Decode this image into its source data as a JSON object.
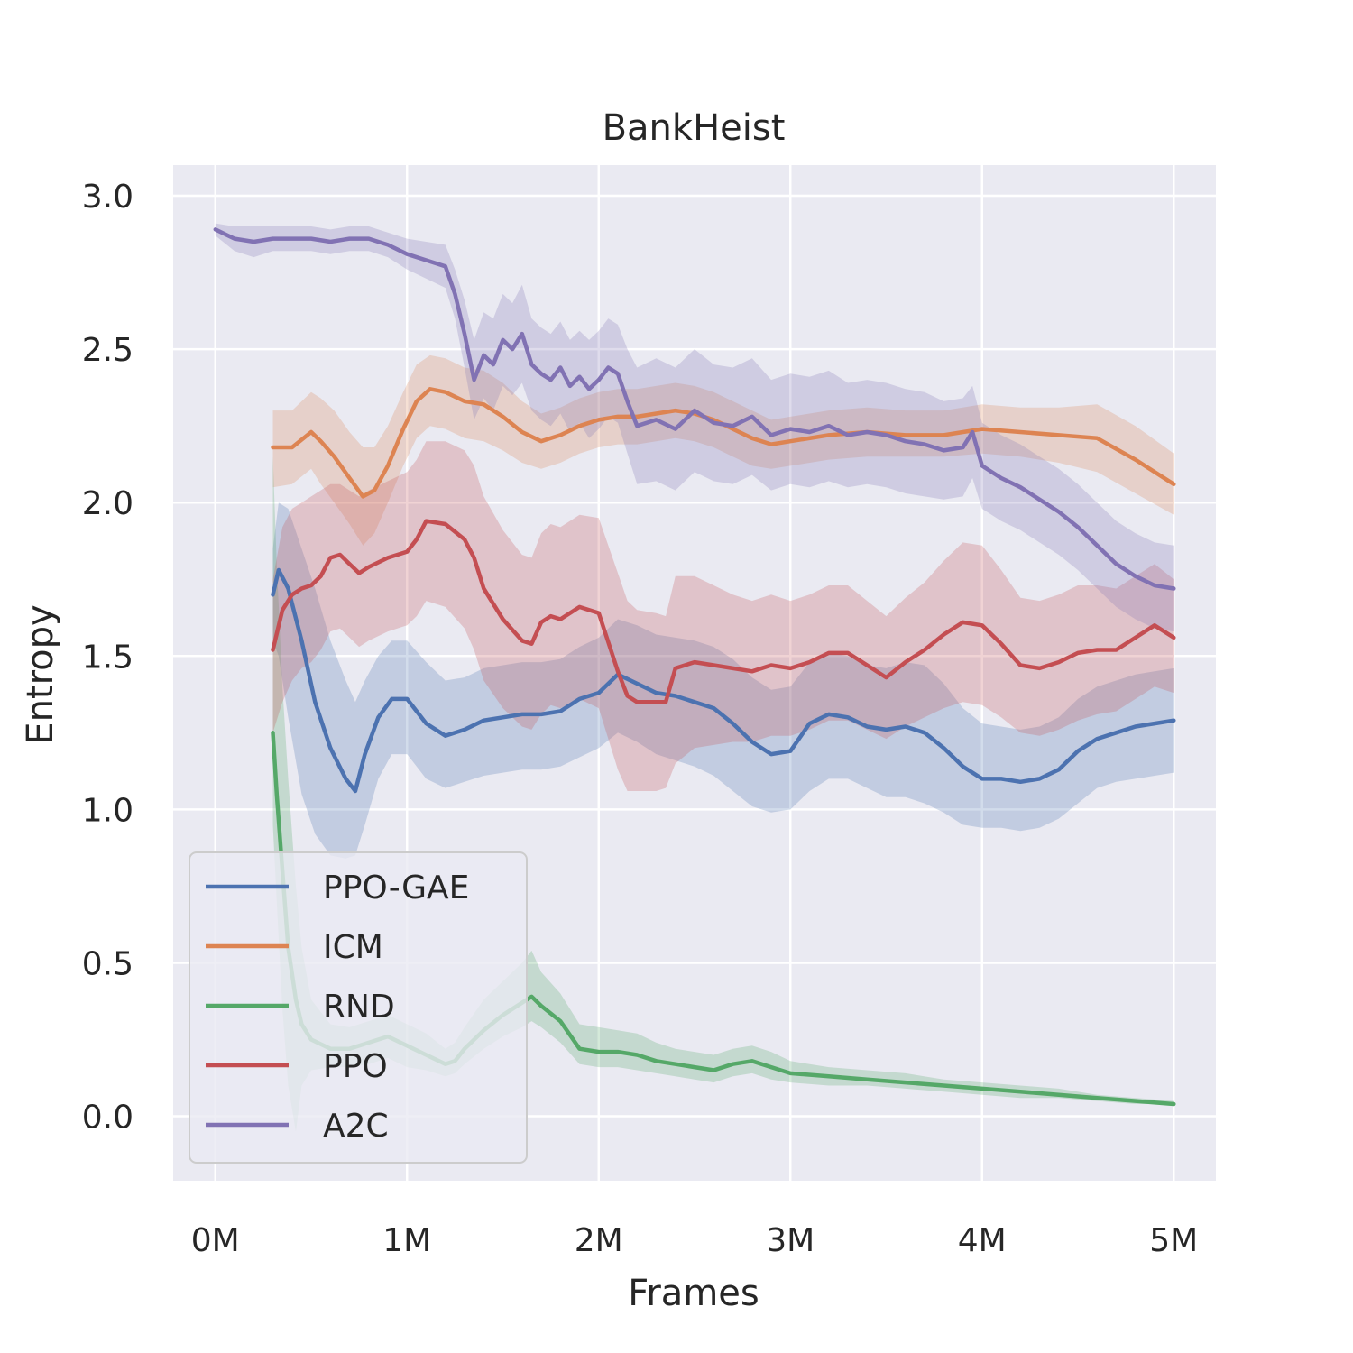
{
  "chart_data": {
    "type": "line",
    "title": "BankHeist",
    "xlabel": "Frames",
    "ylabel": "Entropy",
    "xlim": [
      -0.22,
      5.22
    ],
    "ylim": [
      -0.21,
      3.1
    ],
    "xticks": [
      {
        "value": 0,
        "label": "0M"
      },
      {
        "value": 1,
        "label": "1M"
      },
      {
        "value": 2,
        "label": "2M"
      },
      {
        "value": 3,
        "label": "3M"
      },
      {
        "value": 4,
        "label": "4M"
      },
      {
        "value": 5,
        "label": "5M"
      }
    ],
    "yticks": [
      {
        "value": 0.0,
        "label": "0.0"
      },
      {
        "value": 0.5,
        "label": "0.5"
      },
      {
        "value": 1.0,
        "label": "1.0"
      },
      {
        "value": 1.5,
        "label": "1.5"
      },
      {
        "value": 2.0,
        "label": "2.0"
      },
      {
        "value": 2.5,
        "label": "2.5"
      },
      {
        "value": 3.0,
        "label": "3.0"
      }
    ],
    "grid": true,
    "legend_position": "lower-left",
    "background": "#eaeaf2",
    "series": [
      {
        "name": "PPO-GAE",
        "color": "#4c72b0",
        "x": [
          0.3,
          0.33,
          0.38,
          0.45,
          0.52,
          0.6,
          0.68,
          0.73,
          0.78,
          0.85,
          0.92,
          1.0,
          1.1,
          1.2,
          1.3,
          1.4,
          1.5,
          1.6,
          1.7,
          1.8,
          1.9,
          2.0,
          2.1,
          2.2,
          2.3,
          2.4,
          2.5,
          2.6,
          2.7,
          2.8,
          2.9,
          3.0,
          3.1,
          3.2,
          3.3,
          3.4,
          3.5,
          3.6,
          3.7,
          3.8,
          3.9,
          4.0,
          4.1,
          4.2,
          4.3,
          4.4,
          4.5,
          4.6,
          4.7,
          4.8,
          4.9,
          5.0
        ],
        "y": [
          1.7,
          1.78,
          1.72,
          1.55,
          1.35,
          1.2,
          1.1,
          1.06,
          1.18,
          1.3,
          1.36,
          1.36,
          1.28,
          1.24,
          1.26,
          1.29,
          1.3,
          1.31,
          1.31,
          1.32,
          1.36,
          1.38,
          1.44,
          1.41,
          1.38,
          1.37,
          1.35,
          1.33,
          1.28,
          1.22,
          1.18,
          1.19,
          1.28,
          1.31,
          1.3,
          1.27,
          1.26,
          1.27,
          1.25,
          1.2,
          1.14,
          1.1,
          1.1,
          1.09,
          1.1,
          1.13,
          1.19,
          1.23,
          1.25,
          1.27,
          1.28,
          1.29
        ],
        "lower": [
          1.55,
          1.5,
          1.3,
          1.05,
          0.92,
          0.85,
          0.84,
          0.85,
          0.95,
          1.1,
          1.18,
          1.18,
          1.1,
          1.07,
          1.09,
          1.11,
          1.12,
          1.13,
          1.13,
          1.14,
          1.17,
          1.2,
          1.25,
          1.22,
          1.18,
          1.16,
          1.14,
          1.11,
          1.06,
          1.01,
          0.99,
          1.0,
          1.06,
          1.1,
          1.1,
          1.07,
          1.04,
          1.04,
          1.02,
          0.99,
          0.95,
          0.94,
          0.94,
          0.93,
          0.94,
          0.97,
          1.02,
          1.07,
          1.09,
          1.1,
          1.11,
          1.12
        ],
        "upper": [
          1.85,
          2.0,
          1.98,
          1.85,
          1.72,
          1.55,
          1.42,
          1.35,
          1.42,
          1.5,
          1.55,
          1.55,
          1.48,
          1.42,
          1.43,
          1.46,
          1.47,
          1.48,
          1.48,
          1.49,
          1.53,
          1.56,
          1.62,
          1.6,
          1.57,
          1.56,
          1.55,
          1.53,
          1.49,
          1.43,
          1.39,
          1.4,
          1.48,
          1.51,
          1.5,
          1.47,
          1.46,
          1.48,
          1.47,
          1.41,
          1.33,
          1.28,
          1.27,
          1.26,
          1.27,
          1.3,
          1.36,
          1.4,
          1.42,
          1.44,
          1.45,
          1.46
        ]
      },
      {
        "name": "ICM",
        "color": "#dd8452",
        "x": [
          0.3,
          0.4,
          0.5,
          0.55,
          0.62,
          0.7,
          0.77,
          0.83,
          0.9,
          0.98,
          1.05,
          1.12,
          1.2,
          1.3,
          1.4,
          1.5,
          1.6,
          1.7,
          1.8,
          1.9,
          2.0,
          2.1,
          2.2,
          2.3,
          2.4,
          2.5,
          2.6,
          2.7,
          2.8,
          2.9,
          3.0,
          3.2,
          3.4,
          3.6,
          3.8,
          4.0,
          4.2,
          4.4,
          4.6,
          4.8,
          5.0
        ],
        "y": [
          2.18,
          2.18,
          2.23,
          2.2,
          2.15,
          2.08,
          2.02,
          2.04,
          2.12,
          2.24,
          2.33,
          2.37,
          2.36,
          2.33,
          2.32,
          2.28,
          2.23,
          2.2,
          2.22,
          2.25,
          2.27,
          2.28,
          2.28,
          2.29,
          2.3,
          2.29,
          2.27,
          2.24,
          2.21,
          2.19,
          2.2,
          2.22,
          2.23,
          2.22,
          2.22,
          2.24,
          2.23,
          2.22,
          2.21,
          2.14,
          2.06
        ],
        "lower": [
          2.05,
          2.06,
          2.11,
          2.06,
          2.0,
          1.93,
          1.86,
          1.9,
          2.0,
          2.12,
          2.21,
          2.25,
          2.24,
          2.21,
          2.2,
          2.17,
          2.13,
          2.11,
          2.13,
          2.16,
          2.18,
          2.19,
          2.19,
          2.2,
          2.21,
          2.2,
          2.18,
          2.15,
          2.12,
          2.11,
          2.12,
          2.14,
          2.15,
          2.15,
          2.15,
          2.16,
          2.15,
          2.13,
          2.1,
          2.03,
          1.96
        ],
        "upper": [
          2.3,
          2.3,
          2.36,
          2.34,
          2.3,
          2.23,
          2.18,
          2.18,
          2.25,
          2.36,
          2.45,
          2.48,
          2.47,
          2.44,
          2.43,
          2.39,
          2.33,
          2.29,
          2.31,
          2.34,
          2.36,
          2.37,
          2.37,
          2.38,
          2.39,
          2.38,
          2.36,
          2.33,
          2.3,
          2.27,
          2.28,
          2.3,
          2.31,
          2.3,
          2.3,
          2.32,
          2.31,
          2.31,
          2.32,
          2.25,
          2.16
        ]
      },
      {
        "name": "RND",
        "color": "#55a868",
        "x": [
          0.3,
          0.32,
          0.35,
          0.38,
          0.42,
          0.45,
          0.5,
          0.6,
          0.7,
          0.8,
          0.9,
          1.0,
          1.1,
          1.2,
          1.25,
          1.3,
          1.4,
          1.5,
          1.6,
          1.65,
          1.7,
          1.8,
          1.9,
          2.0,
          2.1,
          2.2,
          2.3,
          2.4,
          2.5,
          2.6,
          2.7,
          2.8,
          2.9,
          3.0,
          3.2,
          3.4,
          3.6,
          3.8,
          4.0,
          4.2,
          4.4,
          4.6,
          4.8,
          5.0
        ],
        "y": [
          1.25,
          1.05,
          0.8,
          0.55,
          0.38,
          0.3,
          0.25,
          0.22,
          0.22,
          0.24,
          0.26,
          0.23,
          0.2,
          0.17,
          0.18,
          0.22,
          0.28,
          0.33,
          0.37,
          0.39,
          0.36,
          0.31,
          0.22,
          0.21,
          0.21,
          0.2,
          0.18,
          0.17,
          0.16,
          0.15,
          0.17,
          0.18,
          0.16,
          0.14,
          0.13,
          0.12,
          0.11,
          0.1,
          0.09,
          0.08,
          0.07,
          0.06,
          0.05,
          0.04
        ],
        "lower": [
          0.95,
          0.7,
          0.35,
          0.1,
          -0.05,
          0.1,
          0.15,
          0.16,
          0.16,
          0.17,
          0.19,
          0.16,
          0.15,
          0.13,
          0.14,
          0.17,
          0.22,
          0.26,
          0.29,
          0.31,
          0.29,
          0.24,
          0.17,
          0.16,
          0.16,
          0.15,
          0.14,
          0.13,
          0.12,
          0.11,
          0.13,
          0.14,
          0.12,
          0.11,
          0.1,
          0.1,
          0.09,
          0.08,
          0.07,
          0.06,
          0.06,
          0.05,
          0.04,
          0.04
        ],
        "upper": [
          2.15,
          1.8,
          1.4,
          1.1,
          0.75,
          0.55,
          0.38,
          0.3,
          0.29,
          0.31,
          0.33,
          0.3,
          0.27,
          0.22,
          0.24,
          0.29,
          0.38,
          0.44,
          0.5,
          0.54,
          0.47,
          0.4,
          0.3,
          0.29,
          0.28,
          0.27,
          0.24,
          0.22,
          0.21,
          0.2,
          0.22,
          0.23,
          0.21,
          0.18,
          0.16,
          0.15,
          0.14,
          0.12,
          0.11,
          0.1,
          0.09,
          0.07,
          0.06,
          0.05
        ]
      },
      {
        "name": "PPO",
        "color": "#c44e52",
        "x": [
          0.3,
          0.35,
          0.4,
          0.45,
          0.5,
          0.55,
          0.6,
          0.65,
          0.7,
          0.75,
          0.8,
          0.9,
          1.0,
          1.05,
          1.1,
          1.2,
          1.3,
          1.35,
          1.4,
          1.5,
          1.6,
          1.65,
          1.7,
          1.75,
          1.8,
          1.9,
          2.0,
          2.1,
          2.15,
          2.2,
          2.3,
          2.35,
          2.4,
          2.5,
          2.6,
          2.7,
          2.8,
          2.9,
          3.0,
          3.1,
          3.2,
          3.3,
          3.4,
          3.5,
          3.6,
          3.7,
          3.8,
          3.9,
          4.0,
          4.1,
          4.2,
          4.3,
          4.4,
          4.5,
          4.6,
          4.7,
          4.8,
          4.9,
          5.0
        ],
        "y": [
          1.52,
          1.65,
          1.7,
          1.72,
          1.73,
          1.76,
          1.82,
          1.83,
          1.8,
          1.77,
          1.79,
          1.82,
          1.84,
          1.88,
          1.94,
          1.93,
          1.88,
          1.82,
          1.72,
          1.62,
          1.55,
          1.54,
          1.61,
          1.63,
          1.62,
          1.66,
          1.64,
          1.45,
          1.37,
          1.35,
          1.35,
          1.35,
          1.46,
          1.48,
          1.47,
          1.46,
          1.45,
          1.47,
          1.46,
          1.48,
          1.51,
          1.51,
          1.47,
          1.43,
          1.48,
          1.52,
          1.57,
          1.61,
          1.6,
          1.54,
          1.47,
          1.46,
          1.48,
          1.51,
          1.52,
          1.52,
          1.56,
          1.6,
          1.56
        ],
        "lower": [
          1.25,
          1.35,
          1.42,
          1.46,
          1.48,
          1.52,
          1.58,
          1.59,
          1.56,
          1.53,
          1.55,
          1.58,
          1.6,
          1.63,
          1.68,
          1.66,
          1.59,
          1.52,
          1.42,
          1.33,
          1.27,
          1.26,
          1.31,
          1.34,
          1.33,
          1.36,
          1.33,
          1.13,
          1.06,
          1.06,
          1.06,
          1.07,
          1.15,
          1.2,
          1.21,
          1.22,
          1.22,
          1.24,
          1.24,
          1.26,
          1.29,
          1.29,
          1.26,
          1.23,
          1.27,
          1.3,
          1.33,
          1.35,
          1.34,
          1.3,
          1.25,
          1.24,
          1.26,
          1.29,
          1.31,
          1.32,
          1.36,
          1.4,
          1.38
        ],
        "upper": [
          1.75,
          1.92,
          1.98,
          2.0,
          2.02,
          2.04,
          2.06,
          2.06,
          2.04,
          2.02,
          2.04,
          2.07,
          2.1,
          2.14,
          2.2,
          2.2,
          2.17,
          2.12,
          2.02,
          1.91,
          1.83,
          1.82,
          1.9,
          1.93,
          1.92,
          1.96,
          1.95,
          1.77,
          1.68,
          1.65,
          1.64,
          1.63,
          1.76,
          1.76,
          1.73,
          1.7,
          1.68,
          1.7,
          1.68,
          1.7,
          1.73,
          1.73,
          1.68,
          1.63,
          1.69,
          1.74,
          1.81,
          1.87,
          1.86,
          1.78,
          1.69,
          1.68,
          1.7,
          1.73,
          1.73,
          1.72,
          1.76,
          1.8,
          1.75
        ]
      },
      {
        "name": "A2C",
        "color": "#8172b3",
        "x": [
          0.0,
          0.1,
          0.2,
          0.3,
          0.4,
          0.5,
          0.6,
          0.7,
          0.8,
          0.9,
          1.0,
          1.1,
          1.2,
          1.25,
          1.3,
          1.35,
          1.4,
          1.45,
          1.5,
          1.55,
          1.6,
          1.65,
          1.7,
          1.75,
          1.8,
          1.85,
          1.9,
          1.95,
          2.0,
          2.05,
          2.1,
          2.15,
          2.2,
          2.3,
          2.4,
          2.5,
          2.6,
          2.7,
          2.8,
          2.9,
          3.0,
          3.1,
          3.2,
          3.3,
          3.4,
          3.5,
          3.6,
          3.7,
          3.8,
          3.9,
          3.95,
          4.0,
          4.1,
          4.2,
          4.3,
          4.4,
          4.5,
          4.6,
          4.7,
          4.8,
          4.9,
          5.0
        ],
        "y": [
          2.89,
          2.86,
          2.85,
          2.86,
          2.86,
          2.86,
          2.85,
          2.86,
          2.86,
          2.84,
          2.81,
          2.79,
          2.77,
          2.68,
          2.55,
          2.4,
          2.48,
          2.45,
          2.53,
          2.5,
          2.55,
          2.45,
          2.42,
          2.4,
          2.44,
          2.38,
          2.41,
          2.37,
          2.4,
          2.44,
          2.42,
          2.33,
          2.25,
          2.27,
          2.24,
          2.3,
          2.26,
          2.25,
          2.28,
          2.22,
          2.24,
          2.23,
          2.25,
          2.22,
          2.23,
          2.22,
          2.2,
          2.19,
          2.17,
          2.18,
          2.23,
          2.12,
          2.08,
          2.05,
          2.01,
          1.97,
          1.92,
          1.86,
          1.8,
          1.76,
          1.73,
          1.72
        ],
        "lower": [
          2.87,
          2.82,
          2.8,
          2.82,
          2.82,
          2.82,
          2.81,
          2.82,
          2.82,
          2.8,
          2.76,
          2.73,
          2.7,
          2.6,
          2.44,
          2.27,
          2.34,
          2.3,
          2.38,
          2.35,
          2.39,
          2.3,
          2.27,
          2.25,
          2.29,
          2.23,
          2.26,
          2.21,
          2.24,
          2.28,
          2.26,
          2.16,
          2.06,
          2.07,
          2.04,
          2.1,
          2.07,
          2.06,
          2.09,
          2.04,
          2.06,
          2.05,
          2.07,
          2.05,
          2.06,
          2.05,
          2.03,
          2.02,
          2.01,
          2.02,
          2.08,
          1.98,
          1.94,
          1.91,
          1.87,
          1.83,
          1.78,
          1.72,
          1.66,
          1.62,
          1.59,
          1.58
        ],
        "upper": [
          2.91,
          2.9,
          2.9,
          2.9,
          2.9,
          2.9,
          2.89,
          2.9,
          2.9,
          2.88,
          2.86,
          2.85,
          2.84,
          2.76,
          2.66,
          2.53,
          2.62,
          2.6,
          2.68,
          2.65,
          2.71,
          2.6,
          2.57,
          2.55,
          2.59,
          2.53,
          2.56,
          2.53,
          2.56,
          2.6,
          2.58,
          2.5,
          2.44,
          2.47,
          2.44,
          2.5,
          2.45,
          2.44,
          2.47,
          2.4,
          2.42,
          2.41,
          2.43,
          2.39,
          2.4,
          2.39,
          2.37,
          2.36,
          2.33,
          2.34,
          2.38,
          2.26,
          2.22,
          2.19,
          2.15,
          2.11,
          2.06,
          2.0,
          1.94,
          1.9,
          1.87,
          1.86
        ]
      }
    ]
  }
}
